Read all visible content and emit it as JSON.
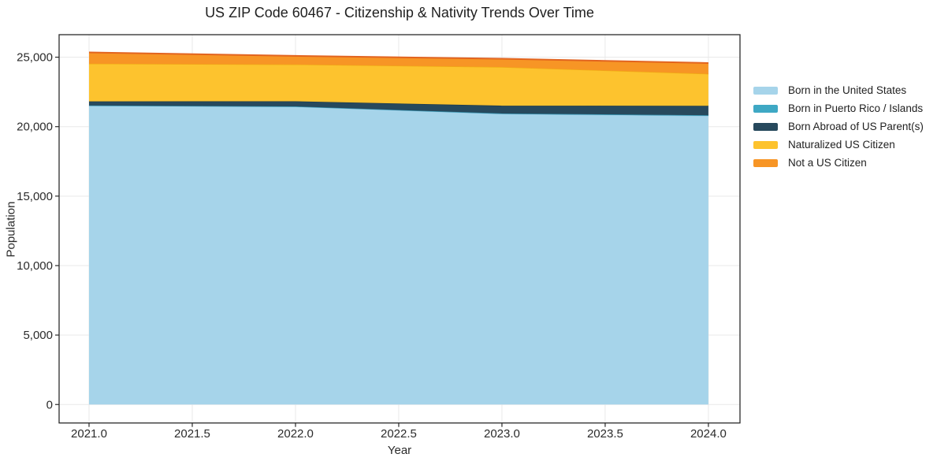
{
  "figure": {
    "background": "#ffffff"
  },
  "chart_data": {
    "type": "area",
    "stacked": true,
    "title": "US ZIP Code 60467 - Citizenship & Nativity Trends Over Time",
    "xlabel": "Year",
    "ylabel": "Population",
    "x": [
      2021,
      2022,
      2023,
      2024
    ],
    "series": [
      {
        "name": "Born in the United States",
        "color": "#a6d4ea",
        "edge_color": "#8fc5e1",
        "values": [
          21510,
          21440,
          20920,
          20780
        ]
      },
      {
        "name": "Born in Puerto Rico / Islands",
        "color": "#3ea8c4",
        "edge_color": "#3391ad",
        "values": [
          12,
          15,
          30,
          40
        ]
      },
      {
        "name": "Born Abroad of US Parent(s)",
        "color": "#27495d",
        "edge_color": "#1e3a4a",
        "values": [
          300,
          370,
          560,
          680
        ]
      },
      {
        "name": "Naturalized US Citizen",
        "color": "#fdc32e",
        "edge_color": "#f0ab13",
        "values": [
          2710,
          2650,
          2780,
          2300
        ]
      },
      {
        "name": "Not a US Citizen",
        "color": "#f79525",
        "edge_color": "#e2641f",
        "values": [
          810,
          620,
          600,
          780
        ]
      }
    ],
    "axes": {
      "xlim": [
        2020.855,
        2024.153
      ],
      "ylim": [
        -1330,
        26620
      ],
      "xticks": {
        "values": [
          2021.0,
          2021.5,
          2022.0,
          2022.5,
          2023.0,
          2023.5,
          2024.0
        ],
        "labels": [
          "2021.0",
          "2021.5",
          "2022.0",
          "2022.5",
          "2023.0",
          "2023.5",
          "2024.0"
        ]
      },
      "yticks": {
        "values": [
          0,
          5000,
          10000,
          15000,
          20000,
          25000
        ],
        "labels": [
          "0",
          "5,000",
          "10,000",
          "15,000",
          "20,000",
          "25,000"
        ]
      },
      "grid": true,
      "grid_color": "#e9e9e9",
      "spine_color": "#2b2b2b",
      "tick_color": "#2b2b2b",
      "tick_label_color": "#2b2b2b"
    },
    "legend": {
      "position": "right-outside",
      "frame": false
    }
  }
}
